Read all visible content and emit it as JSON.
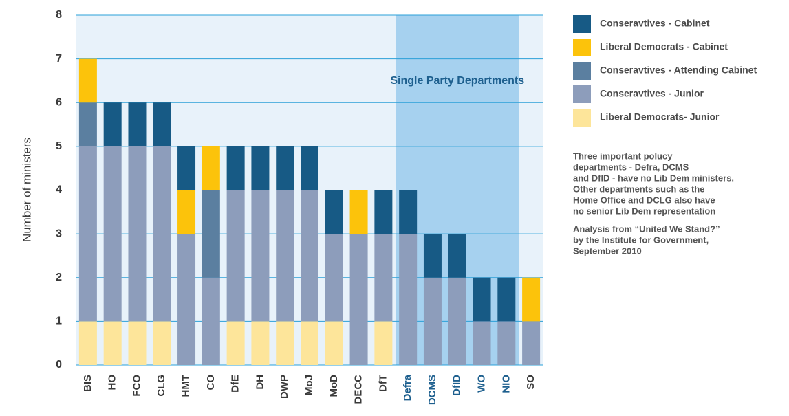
{
  "chart_data": {
    "type": "stacked_bar",
    "y_label": "Number of ministers",
    "categories": [
      "BIS",
      "HO",
      "FCO",
      "CLG",
      "HMT",
      "CO",
      "DfE",
      "DH",
      "DWP",
      "MoJ",
      "MoD",
      "DECC",
      "DfT",
      "Defra",
      "DCMS",
      "DfID",
      "WO",
      "NIO",
      "SO"
    ],
    "series": [
      {
        "name": "Conseravtives - Cabinet",
        "color": "#175a85",
        "values": [
          0,
          1,
          1,
          1,
          1,
          0,
          1,
          1,
          1,
          1,
          1,
          0,
          1,
          1,
          1,
          1,
          1,
          1,
          0
        ]
      },
      {
        "name": "Liberal Democrats - Cabinet",
        "color": "#fcc30b",
        "values": [
          1,
          0,
          0,
          0,
          1,
          1,
          0,
          0,
          0,
          0,
          0,
          1,
          0,
          0,
          0,
          0,
          0,
          0,
          1
        ]
      },
      {
        "name": "Conseravtives - Attending Cabinet",
        "color": "#5b7fa0",
        "values": [
          1,
          0,
          0,
          0,
          0,
          2,
          0,
          0,
          0,
          0,
          0,
          0,
          0,
          0,
          0,
          0,
          0,
          0,
          0
        ]
      },
      {
        "name": "Conseravtives - Junior",
        "color": "#8d9dbb",
        "values": [
          4,
          4,
          4,
          4,
          3,
          2,
          3,
          3,
          3,
          3,
          2,
          3,
          2,
          3,
          2,
          2,
          1,
          1,
          1
        ]
      },
      {
        "name": "Liberal Democrats- Junior",
        "color": "#fde59a",
        "values": [
          1,
          1,
          1,
          1,
          0,
          0,
          1,
          1,
          1,
          1,
          1,
          0,
          1,
          0,
          0,
          0,
          0,
          0,
          0
        ]
      }
    ],
    "ylim": [
      0,
      8
    ],
    "yticks": [
      0,
      1,
      2,
      3,
      4,
      5,
      6,
      7,
      8
    ],
    "grid": true,
    "highlight": {
      "label": "Single Party Departments",
      "from": "Defra",
      "to": "NIO",
      "color": "#a6d1ef"
    },
    "notes": [
      [
        "Three important polucy",
        "departments - Defra, DCMS",
        "and DfID - have no Lib Dem ministers.",
        "Other departments such as the",
        "Home Office and DCLG also have",
        "no senior Lib Dem representation"
      ],
      [
        "Analysis from “United We Stand?”",
        "by the Institute for Government,",
        "September 2010"
      ]
    ]
  }
}
